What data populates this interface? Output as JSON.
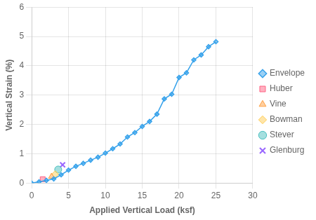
{
  "chart_data": {
    "type": "scatter",
    "xlabel": "Applied Vertical Load (ksf)",
    "ylabel": "Vertical Strain (%)",
    "series": [
      {
        "name": "Envelope",
        "type": "line",
        "marker": "diamond",
        "line_style": "solid",
        "x": [
          0,
          1,
          2,
          3,
          4,
          5,
          6,
          7,
          8,
          9,
          10,
          11,
          12,
          13,
          14,
          15,
          16,
          17,
          18,
          19,
          20,
          21,
          22,
          23,
          24,
          25
        ],
        "values": [
          0,
          0.04,
          0.09,
          0.14,
          0.28,
          0.44,
          0.57,
          0.67,
          0.78,
          0.88,
          1.02,
          1.17,
          1.33,
          1.57,
          1.72,
          1.93,
          2.1,
          2.35,
          2.87,
          3.03,
          3.6,
          3.76,
          4.2,
          4.37,
          4.65,
          4.82
        ]
      },
      {
        "name": "Huber",
        "type": "scatter",
        "marker": "square",
        "x": [
          1.5
        ],
        "values": [
          0.13
        ]
      },
      {
        "name": "Vine",
        "type": "scatter",
        "marker": "triangle",
        "x": [
          2.7
        ],
        "values": [
          0.22
        ]
      },
      {
        "name": "Bowman",
        "type": "scatter",
        "marker": "diamond",
        "x": [
          3.2
        ],
        "values": [
          0.3
        ]
      },
      {
        "name": "Stever",
        "type": "scatter",
        "marker": "circle",
        "x": [
          3.6
        ],
        "values": [
          0.46
        ]
      },
      {
        "name": "Glenburg",
        "type": "scatter",
        "marker": "x",
        "x": [
          4.2
        ],
        "values": [
          0.62
        ]
      }
    ],
    "xlim": [
      0,
      30
    ],
    "xticks": [
      0,
      5,
      10,
      15,
      20,
      25,
      30
    ],
    "ylim": [
      0,
      6
    ],
    "yticks": [
      0,
      1,
      2,
      3,
      4,
      5,
      6
    ],
    "grid": true,
    "legend": "right"
  }
}
